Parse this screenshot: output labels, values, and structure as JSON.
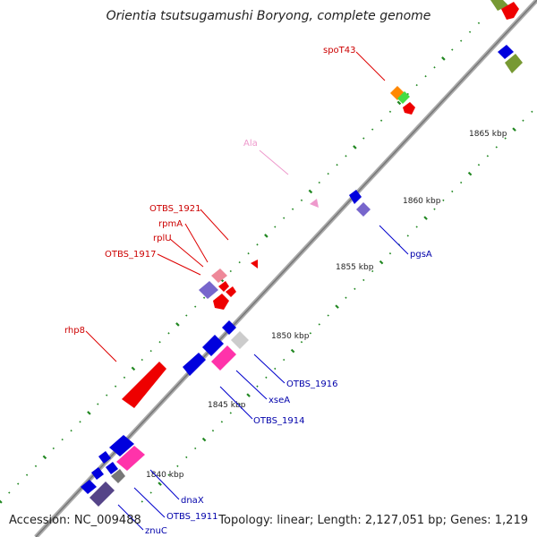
{
  "title": "Orientia tsutsugamushi Boryong, complete genome",
  "footer": {
    "accession": "Accession: NC_009488",
    "summary": "Topology: linear; Length: 2,127,051 bp; Genes: 1,219"
  },
  "scale_labels": [
    "1840 kbp",
    "1845 kbp",
    "1850 kbp",
    "1855 kbp",
    "1860 kbp",
    "1865 kbp"
  ],
  "gene_labels": {
    "spoT43": "spoT43",
    "ala": "Ala",
    "otbs1921": "OTBS_1921",
    "rpmA": "rpmA",
    "rplU": "rplU",
    "otbs1917": "OTBS_1917",
    "rhp8": "rhp8",
    "pgsA": "pgsA",
    "otbs1916": "OTBS_1916",
    "xseA": "xseA",
    "otbs1914": "OTBS_1914",
    "dnaX": "dnaX",
    "otbs1911": "OTBS_1911",
    "znuC": "znuC"
  },
  "colors": {
    "forward_label": "#cc0000",
    "reverse_label": "#0000aa",
    "trna_label": "#ee99cc",
    "backbone": "#999999",
    "tick": "#228822"
  }
}
